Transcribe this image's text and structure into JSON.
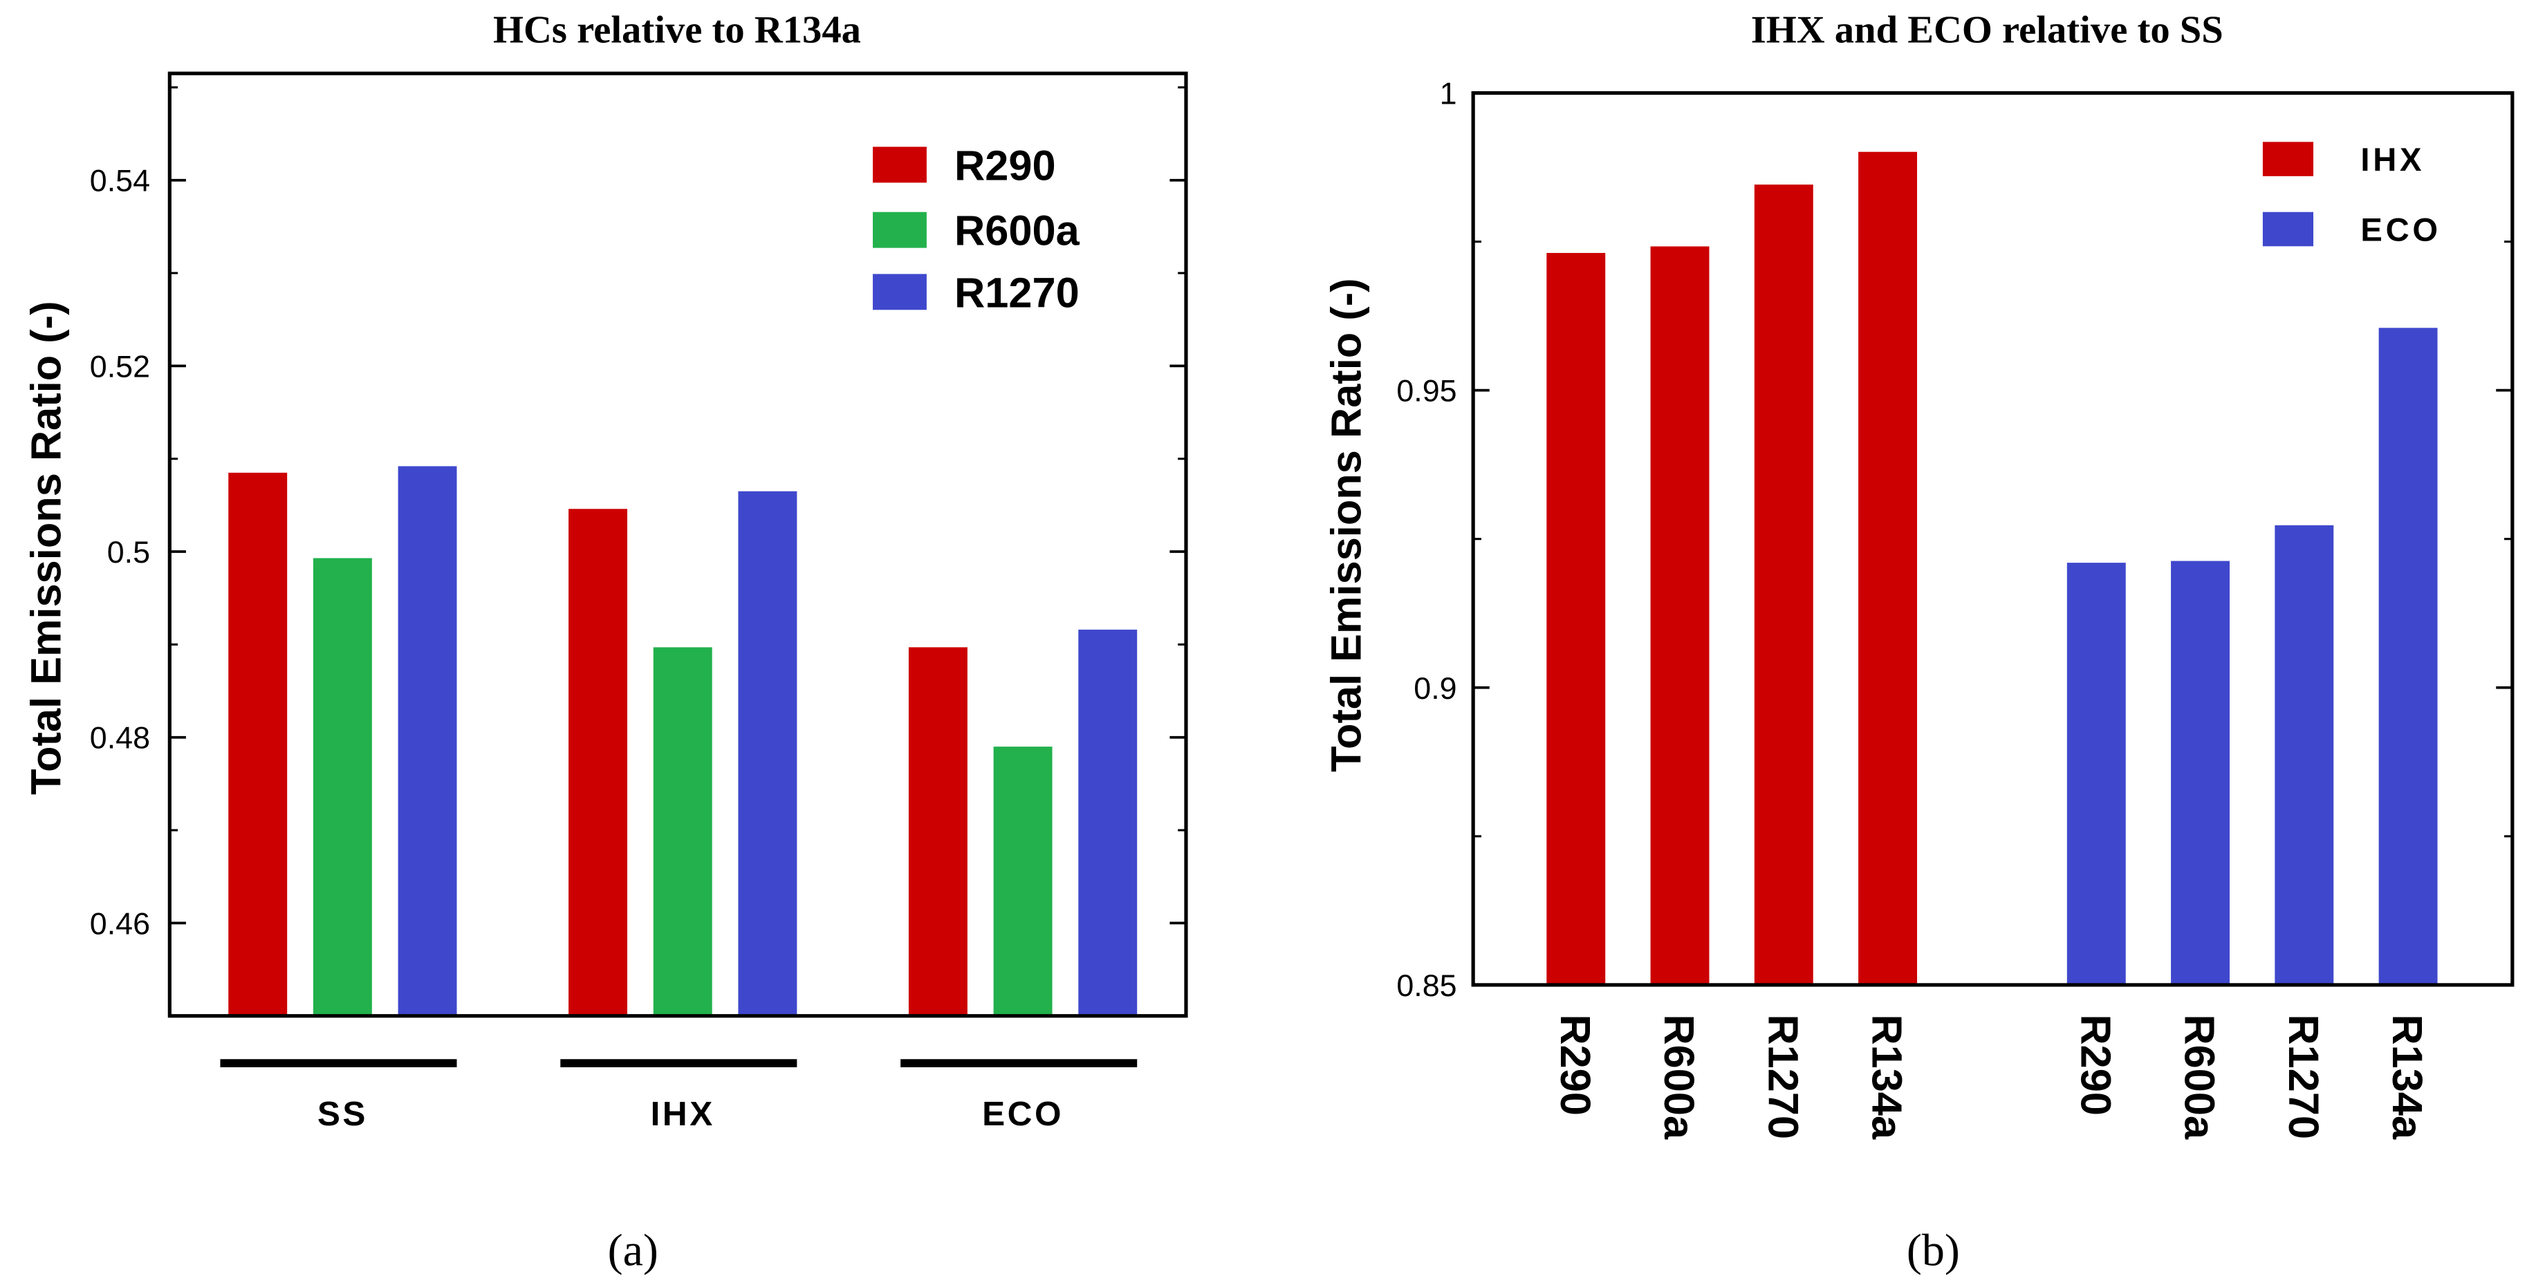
{
  "chart_data": [
    {
      "type": "bar",
      "panel_label": "(a)",
      "title": "HCs relative to R134a",
      "xlabel": "",
      "ylabel": "Total Emissions Ratio (-)",
      "categories": [
        "SS",
        "IHX",
        "ECO"
      ],
      "series": [
        {
          "name": "R290",
          "color": "#cc0000",
          "values": [
            0.5085,
            0.5046,
            0.4897
          ]
        },
        {
          "name": "R600a",
          "color": "#22b14c",
          "values": [
            0.4993,
            0.4897,
            0.479
          ]
        },
        {
          "name": "R1270",
          "color": "#3f48cc",
          "values": [
            0.5092,
            0.5065,
            0.4916
          ]
        }
      ],
      "ylim": [
        0.45,
        0.5515
      ],
      "yticks": [
        0.46,
        0.48,
        0.5,
        0.52,
        0.54
      ],
      "yticklabels": [
        "0.46",
        "0.48",
        "0.5",
        "0.52",
        "0.54"
      ],
      "grid": false,
      "legend_position": "top-right"
    },
    {
      "type": "bar",
      "panel_label": "(b)",
      "title": "IHX and ECO relative to SS",
      "xlabel": "",
      "ylabel": "Total Emissions Ratio (-)",
      "categories": [
        "R290",
        "R600a",
        "R1270",
        "R134a"
      ],
      "series": [
        {
          "name": "IHX",
          "color": "#cc0000",
          "values": [
            0.9731,
            0.9742,
            0.9846,
            0.9901
          ]
        },
        {
          "name": "ECO",
          "color": "#3f48cc",
          "values": [
            0.921,
            0.9213,
            0.9273,
            0.9605
          ]
        }
      ],
      "ylim": [
        0.85,
        1.0
      ],
      "yticks": [
        0.85,
        0.9,
        0.95,
        1.0
      ],
      "yticklabels": [
        "0.85",
        "0.9",
        "0.95",
        "1"
      ],
      "grid": false,
      "legend_position": "top-right"
    }
  ]
}
